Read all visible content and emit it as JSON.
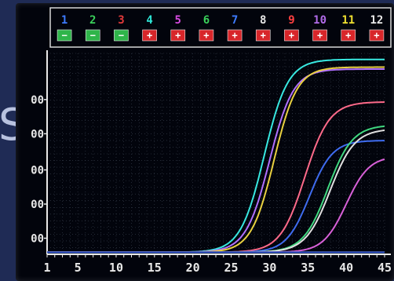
{
  "chart_data": {
    "type": "line",
    "title": "",
    "xlabel": "",
    "ylabel": "",
    "xlim": [
      1,
      45
    ],
    "x_ticks": [
      "1",
      "5",
      "10",
      "15",
      "20",
      "25",
      "30",
      "35",
      "40",
      "45"
    ],
    "y_tick_labels": [
      "00",
      "00",
      "00",
      "00",
      "00"
    ],
    "y_tick_fraction": [
      0.08,
      0.25,
      0.42,
      0.6,
      0.77
    ],
    "grid": true,
    "wells": [
      {
        "label": "1",
        "status": "−",
        "label_color": "#3d7bff",
        "status_bg": "#2fb54a"
      },
      {
        "label": "2",
        "status": "−",
        "label_color": "#3ad05a",
        "status_bg": "#2fb54a"
      },
      {
        "label": "3",
        "status": "−",
        "label_color": "#e23a3a",
        "status_bg": "#2fb54a"
      },
      {
        "label": "4",
        "status": "+",
        "label_color": "#2ee6d6",
        "status_bg": "#d8262a"
      },
      {
        "label": "5",
        "status": "+",
        "label_color": "#d64be0",
        "status_bg": "#d8262a"
      },
      {
        "label": "6",
        "status": "+",
        "label_color": "#3ad05a",
        "status_bg": "#d8262a"
      },
      {
        "label": "7",
        "status": "+",
        "label_color": "#3d7bff",
        "status_bg": "#d8262a"
      },
      {
        "label": "8",
        "status": "+",
        "label_color": "#e8e8e8",
        "status_bg": "#d8262a"
      },
      {
        "label": "9",
        "status": "+",
        "label_color": "#ff4040",
        "status_bg": "#d8262a"
      },
      {
        "label": "10",
        "status": "+",
        "label_color": "#b06be8",
        "status_bg": "#d8262a"
      },
      {
        "label": "11",
        "status": "+",
        "label_color": "#f0e030",
        "status_bg": "#d8262a"
      },
      {
        "label": "12",
        "status": "+",
        "label_color": "#e8e8e8",
        "status_bg": "#d8262a"
      }
    ],
    "series": [
      {
        "color": "#38e8e0",
        "plateau": 1.0,
        "midpoint": 29.3,
        "slope": 1.55
      },
      {
        "color": "#b070ff",
        "plateau": 0.95,
        "midpoint": 30.0,
        "slope": 1.55
      },
      {
        "color": "#e8d040",
        "plateau": 0.96,
        "midpoint": 30.6,
        "slope": 1.5
      },
      {
        "color": "#ff6a8a",
        "plateau": 0.78,
        "midpoint": 34.6,
        "slope": 1.6
      },
      {
        "color": "#3f6cf0",
        "plateau": 0.58,
        "midpoint": 35.2,
        "slope": 1.5
      },
      {
        "color": "#40d880",
        "plateau": 0.66,
        "midpoint": 37.6,
        "slope": 1.6
      },
      {
        "color": "#e0e0e0",
        "plateau": 0.64,
        "midpoint": 37.9,
        "slope": 1.6
      },
      {
        "color": "#d860d8",
        "plateau": 0.5,
        "midpoint": 40.0,
        "slope": 1.5
      },
      {
        "color": "#d83030",
        "plateau": 0.0,
        "midpoint": 40.0,
        "slope": 1.5
      },
      {
        "color": "#30c040",
        "plateau": 0.0,
        "midpoint": 40.0,
        "slope": 1.5
      },
      {
        "color": "#3050d0",
        "plateau": 0.0,
        "midpoint": 40.0,
        "slope": 1.5
      }
    ]
  },
  "background_glyph": "S"
}
